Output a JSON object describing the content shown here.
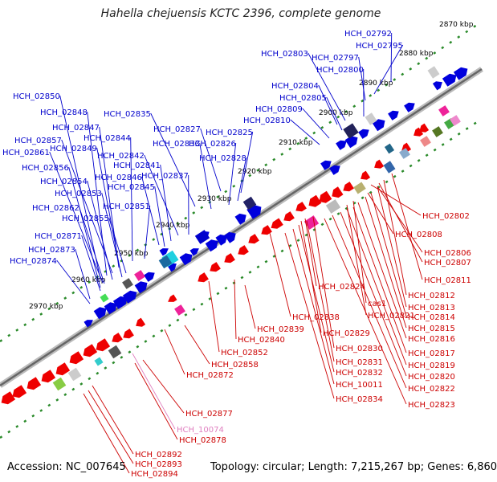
{
  "title": "Hahella chejuensis KCTC 2396, complete genome",
  "footer": {
    "accession": "Accession: NC_007645",
    "summary": "Topology: circular; Length: 7,215,267 bp; Genes: 6,860"
  },
  "colors": {
    "forward_strand": "#0000dd",
    "reverse_strand": "#ee0000",
    "forward_label": "#0000cc",
    "reverse_label": "#cc0000",
    "rna_label": "#e080c0",
    "backbone": "#888888",
    "tick_dots": "#2a8a2a",
    "kbp_label": "#000000"
  },
  "kbp_ticks": [
    "2870 kbp",
    "2880 kbp",
    "2890 kbp",
    "2900 kbp",
    "2910 kbp",
    "2920 kbp",
    "2930 kbp",
    "2940 kbp",
    "2950 kbp",
    "2960 kbp",
    "2970 kbp"
  ],
  "forward_gene_labels": [
    "HCH_02792",
    "HCH_02795",
    "HCH_02797",
    "HCH_02803",
    "HCH_02800",
    "HCH_02804",
    "HCH_02805",
    "HCH_02809",
    "HCH_02810",
    "HCH_02850",
    "HCH_02848",
    "HCH_02835",
    "HCH_02847",
    "HCH_02827",
    "HCH_02825",
    "HCH_02844",
    "HCH_02833",
    "HCH_02826",
    "HCH_02857",
    "HCH_02849",
    "HCH_02861",
    "HCH_02842",
    "HCH_02828",
    "HCH_02841",
    "HCH_02856",
    "HCH_02846",
    "HCH_02837",
    "HCH_02854",
    "HCH_02845",
    "HCH_02853",
    "HCH_02851",
    "HCH_02862",
    "HCH_02855",
    "HCH_02871",
    "HCH_02873",
    "HCH_02874"
  ],
  "reverse_gene_labels": [
    "HCH_02802",
    "HCH_02808",
    "HCH_02806",
    "HCH_02807",
    "HCH_02811",
    "HCH_02812",
    "HCH_02824",
    "HCH_02813",
    "cas1",
    "HCH_02821",
    "HCH_02814",
    "HCH_02838",
    "HCH_02815",
    "HCH_02839",
    "HCH_02816",
    "HCH_02829",
    "HCH_02840",
    "HCH_02830",
    "HCH_02817",
    "HCH_02852",
    "HCH_02819",
    "HCH_02831",
    "HCH_02858",
    "HCH_02832",
    "HCH_02820",
    "HCH_02872",
    "HCH_10011",
    "HCH_02822",
    "HCH_02834",
    "HCH_02823",
    "HCH_02877",
    "HCH_02878",
    "HCH_02892",
    "HCH_02893",
    "HCH_02894"
  ],
  "rna_gene_labels": [
    "HCH_10074"
  ]
}
